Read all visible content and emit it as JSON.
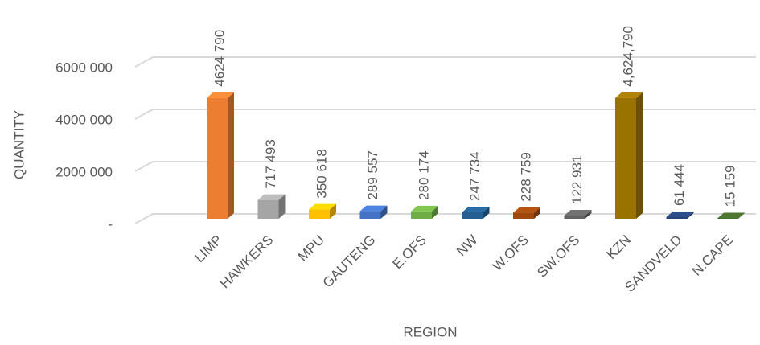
{
  "chart_data": {
    "type": "bar3d",
    "categories": [
      "LIMP",
      "HAWKERS",
      "MPU",
      "GAUTENG",
      "E.OFS",
      "NW",
      "W.OFS",
      "SW.OFS",
      "KZN",
      "SANDVELD",
      "N.CAPE"
    ],
    "values": [
      4624790,
      717493,
      350618,
      289557,
      280174,
      247734,
      228759,
      122931,
      4624790,
      61444,
      15159
    ],
    "value_labels": [
      "4624 790",
      "717 493",
      "350 618",
      "289 557",
      "280 174",
      "247 734",
      "228 759",
      "122 931",
      "4,624,790",
      "61 444",
      "15 159"
    ],
    "colors": [
      "#ed7d31",
      "#a5a5a5",
      "#ffc000",
      "#4472c4",
      "#70ad47",
      "#255e91",
      "#9e480e",
      "#636363",
      "#997300",
      "#264478",
      "#43682b"
    ],
    "x_label": "REGION",
    "y_label": "QUANTITY",
    "ylim": [
      0,
      6000000
    ],
    "yticks": [
      {
        "value": 0,
        "label": "-"
      },
      {
        "value": 2000000,
        "label": "2000 000"
      },
      {
        "value": 4000000,
        "label": "4000 000"
      },
      {
        "value": 6000000,
        "label": "6000 000"
      }
    ],
    "grid": true
  }
}
